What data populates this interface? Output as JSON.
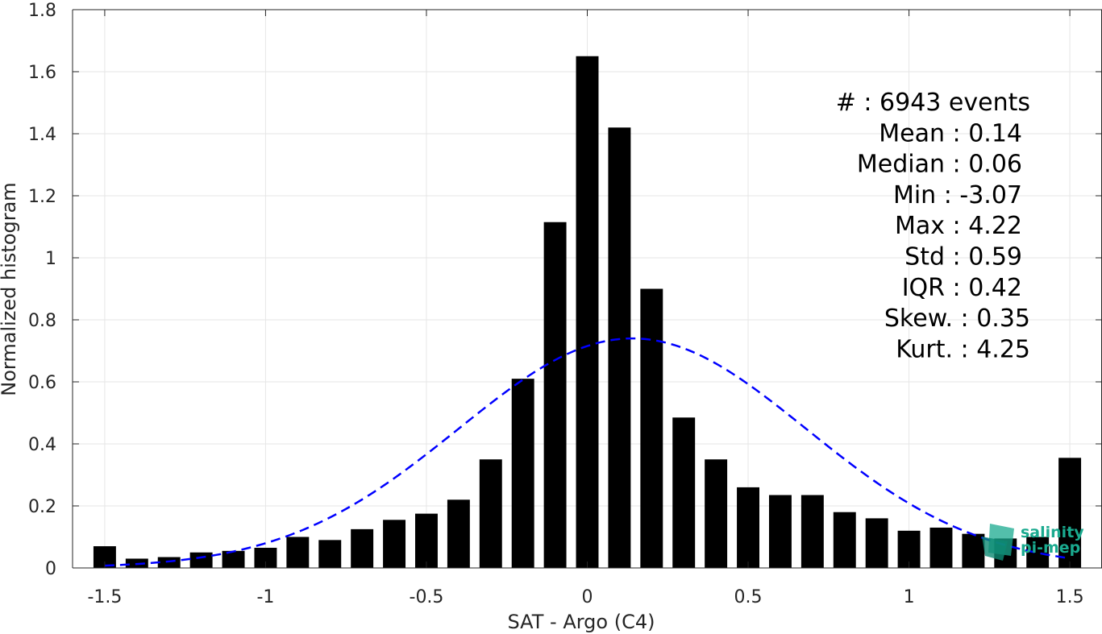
{
  "chart_data": {
    "type": "bar",
    "xlabel": "SAT - Argo (C4)",
    "ylabel": "Normalized histogram",
    "xlim": [
      -1.6,
      1.6
    ],
    "ylim": [
      0,
      1.8
    ],
    "grid": true,
    "x_ticks": [
      -1.5,
      -1,
      -0.5,
      0,
      0.5,
      1,
      1.5
    ],
    "x_tick_labels": [
      "-1.5",
      "-1",
      "-0.5",
      "0",
      "0.5",
      "1",
      "1.5"
    ],
    "y_ticks": [
      0,
      0.2,
      0.4,
      0.6,
      0.8,
      1,
      1.2,
      1.4,
      1.6,
      1.8
    ],
    "y_tick_labels": [
      "0",
      "0.2",
      "0.4",
      "0.6",
      "0.8",
      "1",
      "1.2",
      "1.4",
      "1.6",
      "1.8"
    ],
    "bar_color": "#000000",
    "bar_width": 0.07,
    "bins": [
      -1.5,
      -1.4,
      -1.3,
      -1.2,
      -1.1,
      -1.0,
      -0.9,
      -0.8,
      -0.7,
      -0.6,
      -0.5,
      -0.4,
      -0.3,
      -0.2,
      -0.1,
      0.0,
      0.1,
      0.2,
      0.3,
      0.4,
      0.5,
      0.6,
      0.7,
      0.8,
      0.9,
      1.0,
      1.1,
      1.2,
      1.3,
      1.4,
      1.5
    ],
    "values": [
      0.07,
      0.03,
      0.035,
      0.05,
      0.055,
      0.065,
      0.1,
      0.09,
      0.125,
      0.155,
      0.175,
      0.22,
      0.35,
      0.61,
      1.115,
      1.65,
      1.42,
      0.9,
      0.485,
      0.35,
      0.26,
      0.235,
      0.235,
      0.18,
      0.16,
      0.12,
      0.13,
      0.11,
      0.095,
      0.1,
      0.355
    ],
    "fit_curve": {
      "type": "gaussian",
      "mean": 0.14,
      "std": 0.54,
      "peak": 0.74,
      "x_range": [
        -1.5,
        1.5
      ],
      "color": "#0000ff",
      "style": "dashed"
    },
    "annotations": [
      "#  : 6943 events",
      "Mean : 0.14",
      "Median : 0.06",
      "Min : -3.07",
      "Max : 4.22",
      "Std : 0.59",
      "IQR : 0.42",
      "Skew. : 0.35",
      "Kurt. : 4.25"
    ]
  },
  "logo": {
    "line1": "salinity",
    "line2": "pi-mep",
    "color": "#1aaa8f"
  }
}
